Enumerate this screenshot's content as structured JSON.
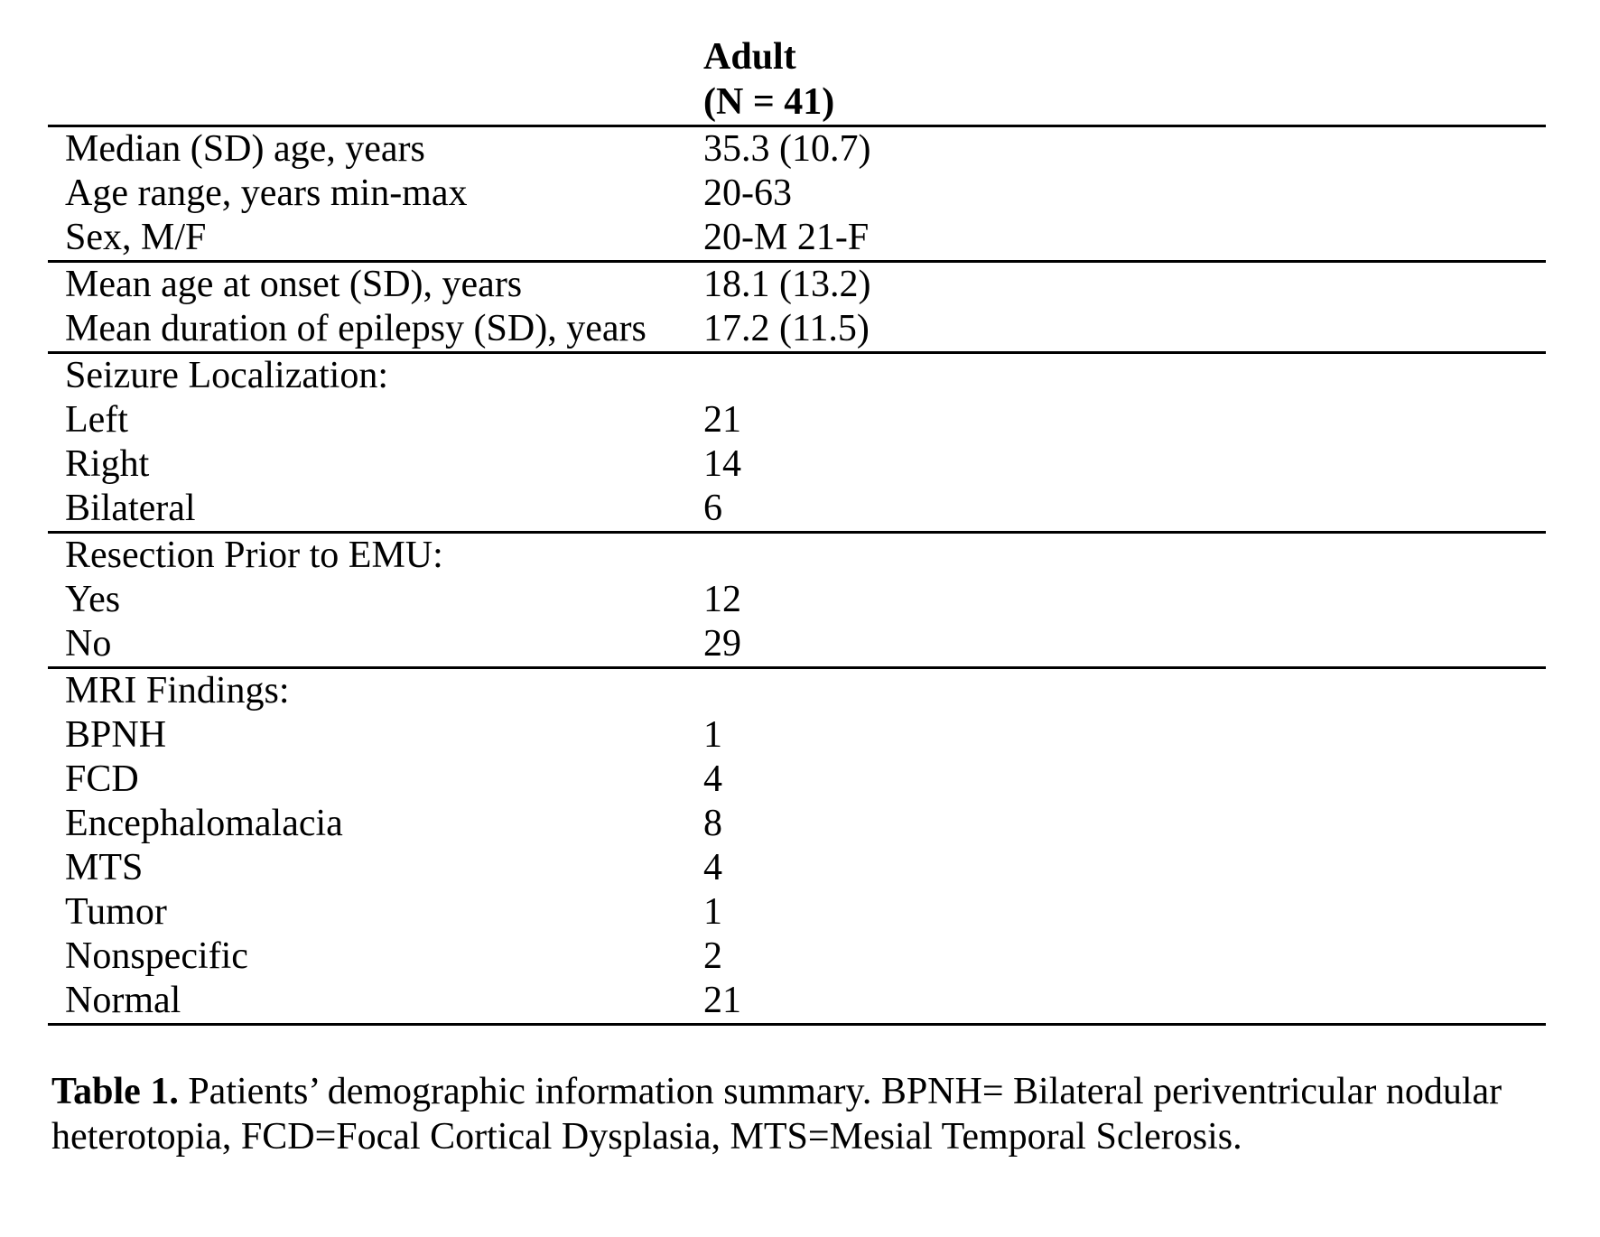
{
  "page": {
    "background_color": "#ffffff",
    "text_color": "#000000",
    "rule_color": "#000000"
  },
  "table": {
    "header": {
      "group_label_line1": "Adult",
      "group_label_line2": "(N = 41)"
    },
    "sections": [
      {
        "name": "age",
        "rows": [
          {
            "label": "Median (SD) age, years",
            "value": "35.3 (10.7)"
          },
          {
            "label": "Age range, years min-max",
            "value": "20-63"
          },
          {
            "label": "Sex, M/F",
            "value": "20-M 21-F"
          }
        ]
      },
      {
        "name": "onset-duration",
        "rows": [
          {
            "label": "Mean age at onset (SD), years",
            "value": "18.1 (13.2)"
          },
          {
            "label": "Mean duration of epilepsy (SD), years",
            "value": "17.2 (11.5)"
          }
        ]
      },
      {
        "name": "seizure-localization",
        "rows": [
          {
            "label": "Seizure Localization:",
            "value": ""
          },
          {
            "label": "Left",
            "value": "21"
          },
          {
            "label": "Right",
            "value": "14"
          },
          {
            "label": "Bilateral",
            "value": "6"
          }
        ]
      },
      {
        "name": "resection-prior-to-emu",
        "rows": [
          {
            "label": "Resection Prior to EMU:",
            "value": ""
          },
          {
            "label": "Yes",
            "value": "12"
          },
          {
            "label": "No",
            "value": "29"
          }
        ]
      },
      {
        "name": "mri-findings",
        "rows": [
          {
            "label": "MRI Findings:",
            "value": ""
          },
          {
            "label": "BPNH",
            "value": "1"
          },
          {
            "label": "FCD",
            "value": "4"
          },
          {
            "label": "Encephalomalacia",
            "value": "8"
          },
          {
            "label": "MTS",
            "value": "4"
          },
          {
            "label": "Tumor",
            "value": "1"
          },
          {
            "label": "Nonspecific",
            "value": "2"
          },
          {
            "label": "Normal",
            "value": "21"
          }
        ]
      }
    ]
  },
  "caption": {
    "label": "Table 1.",
    "text": " Patients’ demographic information summary. BPNH= Bilateral periventricular nodular heterotopia, FCD=Focal Cortical Dysplasia, MTS=Mesial Temporal Sclerosis."
  }
}
